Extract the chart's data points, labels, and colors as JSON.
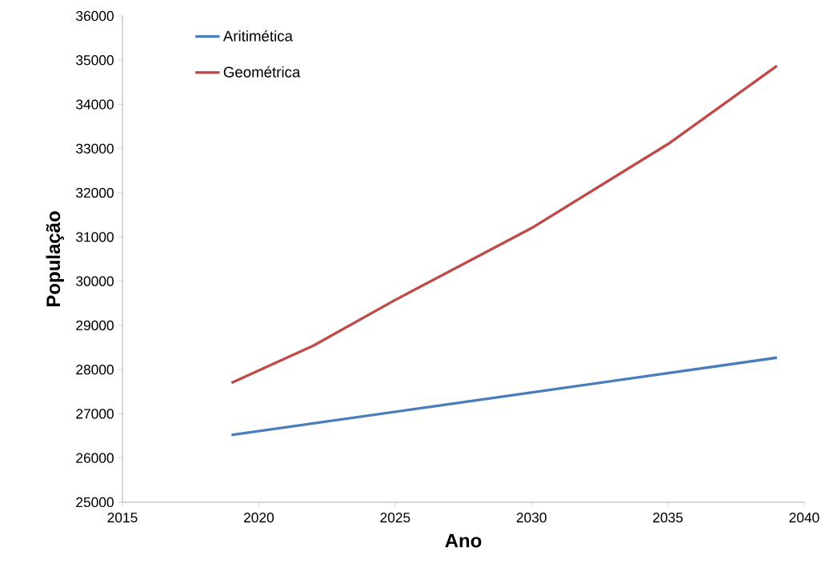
{
  "chart_data": {
    "type": "line",
    "xlabel": "Ano",
    "ylabel": "População",
    "x": [
      2019,
      2022,
      2025,
      2030,
      2035,
      2039
    ],
    "series": [
      {
        "name": "Aritimética",
        "color": "#4a7ebb",
        "x": [
          2019,
          2029,
          2039
        ],
        "values": [
          26520,
          27395,
          28270
        ]
      },
      {
        "name": "Geométrica",
        "color": "#be4b48",
        "values": [
          27700,
          28540,
          29575,
          31200,
          33100,
          34870
        ]
      }
    ],
    "xlim": [
      2015,
      2040
    ],
    "ylim": [
      25000,
      36000
    ],
    "xticks": [
      2015,
      2020,
      2025,
      2030,
      2035,
      2040
    ],
    "yticks": [
      25000,
      26000,
      27000,
      28000,
      29000,
      30000,
      31000,
      32000,
      33000,
      34000,
      35000,
      36000
    ],
    "grid": false,
    "legend": "top left",
    "marker": "none",
    "line_style": "solid"
  }
}
